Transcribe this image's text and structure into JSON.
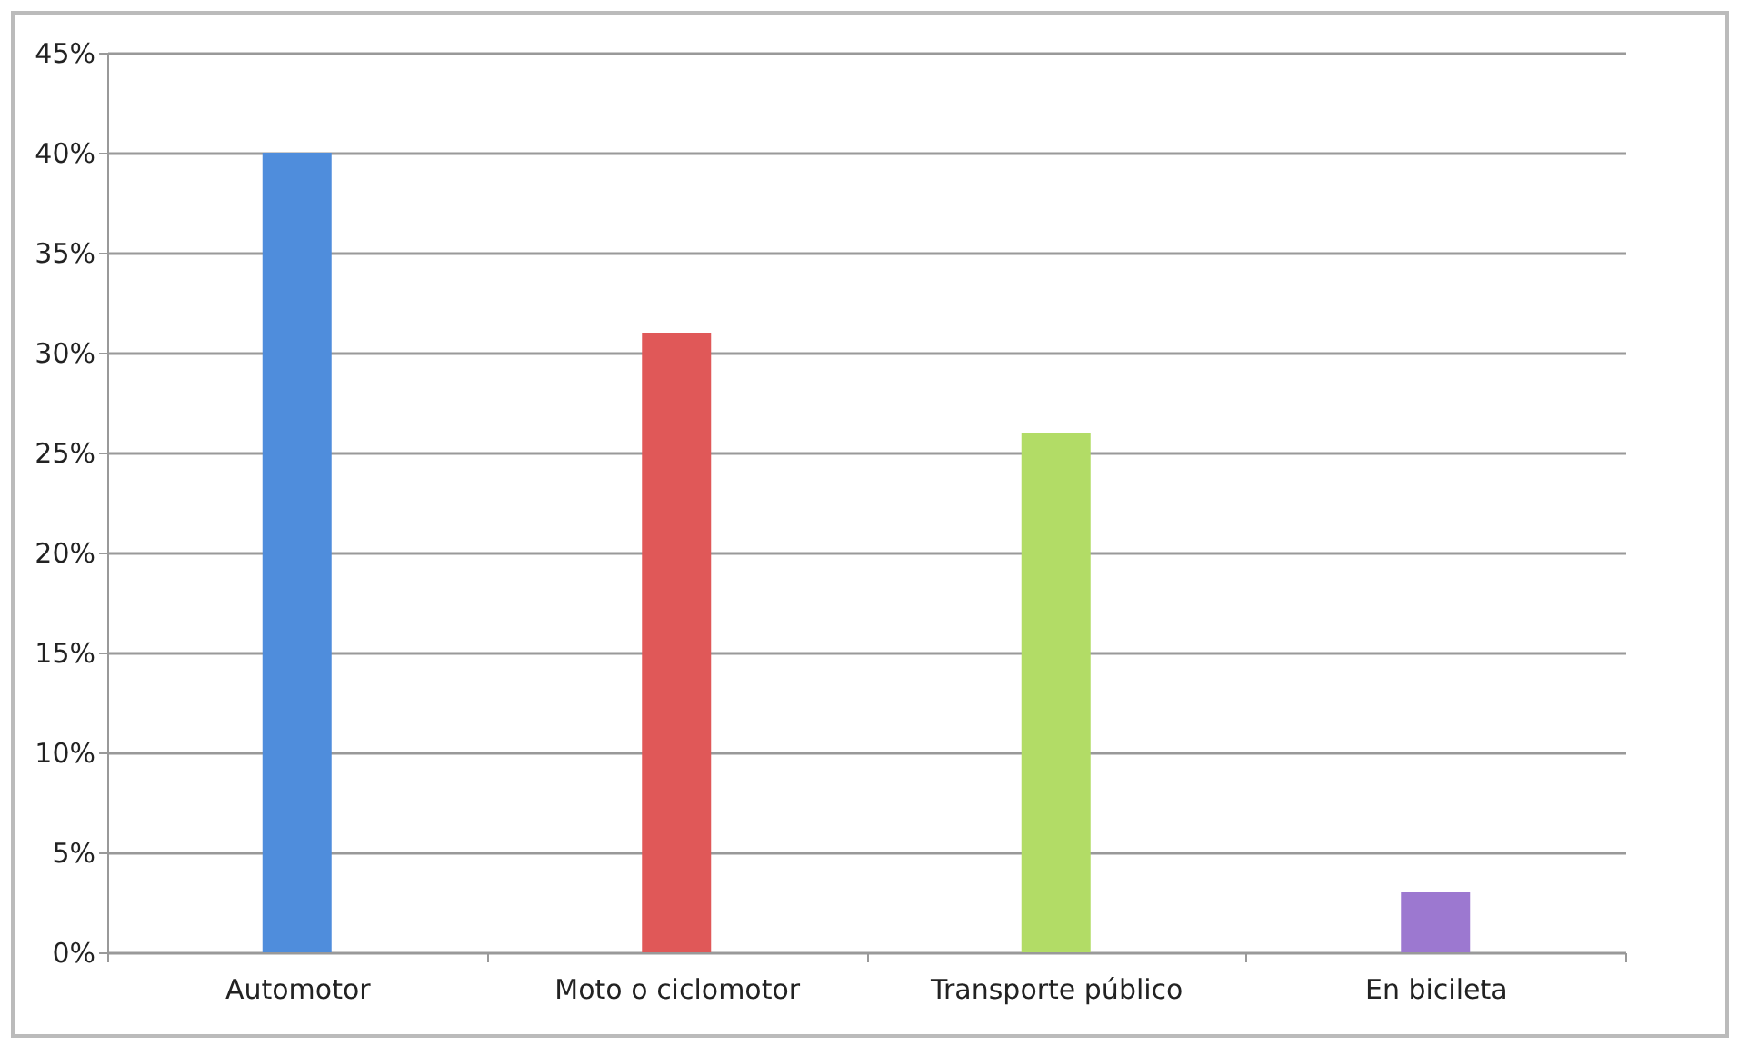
{
  "chart_data": {
    "type": "bar",
    "categories": [
      "Automotor",
      "Moto o ciclomotor",
      "Transporte público",
      "En bicileta"
    ],
    "values": [
      0.4,
      0.31,
      0.26,
      0.03
    ],
    "colors": [
      "#4f8ddc",
      "#e05858",
      "#b2dc66",
      "#9c78d0"
    ],
    "ylim": [
      0,
      0.45
    ],
    "yticks": [
      {
        "value": 0,
        "label": "0%"
      },
      {
        "value": 0.05,
        "label": "5%"
      },
      {
        "value": 0.1,
        "label": "10%"
      },
      {
        "value": 0.15,
        "label": "15%"
      },
      {
        "value": 0.2,
        "label": "20%"
      },
      {
        "value": 0.25,
        "label": "25%"
      },
      {
        "value": 0.3,
        "label": "30%"
      },
      {
        "value": 0.35,
        "label": "35%"
      },
      {
        "value": 0.4,
        "label": "40%"
      },
      {
        "value": 0.45,
        "label": "45%"
      }
    ],
    "grid": "y"
  }
}
